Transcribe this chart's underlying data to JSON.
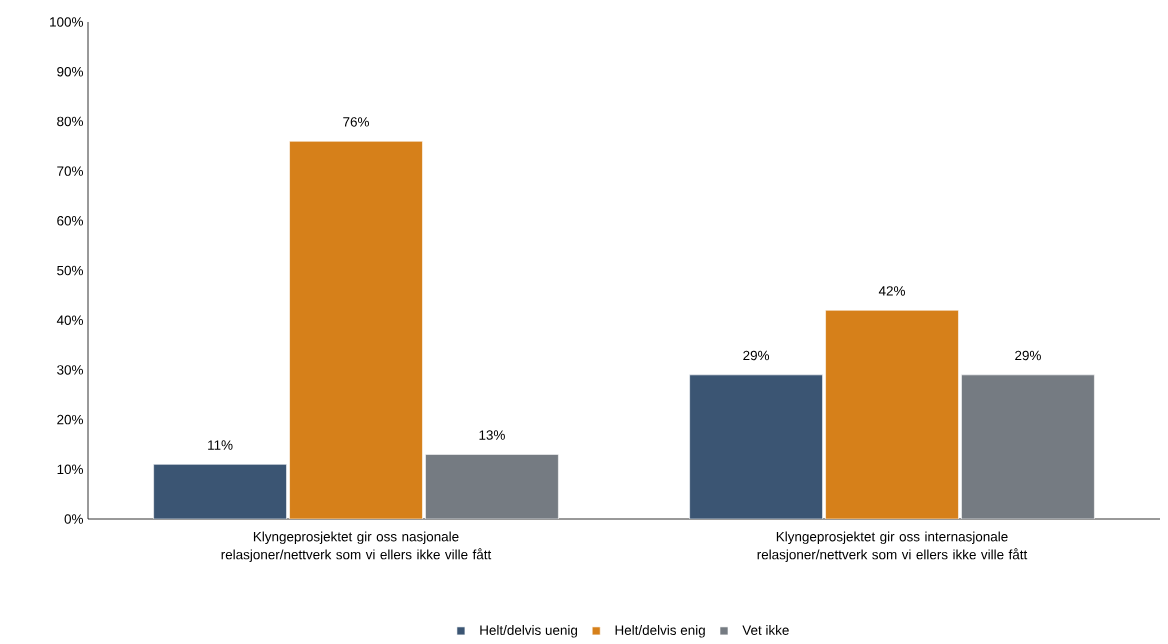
{
  "chart_data": {
    "type": "bar",
    "categories": [
      "Klyngeprosjektet gir oss nasjonale relasjoner/nettverk som vi ellers ikke ville fått",
      "Klyngeprosjektet gir oss internasjonale relasjoner/nettverk som vi ellers ikke ville fått"
    ],
    "series": [
      {
        "name": "Helt/delvis uenig",
        "color": "#3b5573",
        "values": [
          11,
          29
        ],
        "value_labels": [
          "11%",
          "29%"
        ]
      },
      {
        "name": "Helt/delvis enig",
        "color": "#d6801a",
        "values": [
          76,
          42
        ],
        "value_labels": [
          "76%",
          "42%"
        ]
      },
      {
        "name": "Vet ikke",
        "color": "#757b82",
        "values": [
          13,
          29
        ],
        "value_labels": [
          "13%",
          "29%"
        ]
      }
    ],
    "ylim": [
      0,
      100
    ],
    "yticks": [
      {
        "value": 0,
        "label": "0%"
      },
      {
        "value": 10,
        "label": "10%"
      },
      {
        "value": 20,
        "label": "20%"
      },
      {
        "value": 30,
        "label": "30%"
      },
      {
        "value": 40,
        "label": "40%"
      },
      {
        "value": 50,
        "label": "50%"
      },
      {
        "value": 60,
        "label": "60%"
      },
      {
        "value": 70,
        "label": "70%"
      },
      {
        "value": 80,
        "label": "80%"
      },
      {
        "value": 90,
        "label": "90%"
      },
      {
        "value": 100,
        "label": "100%"
      }
    ],
    "grid": false,
    "legend": "bottom"
  }
}
